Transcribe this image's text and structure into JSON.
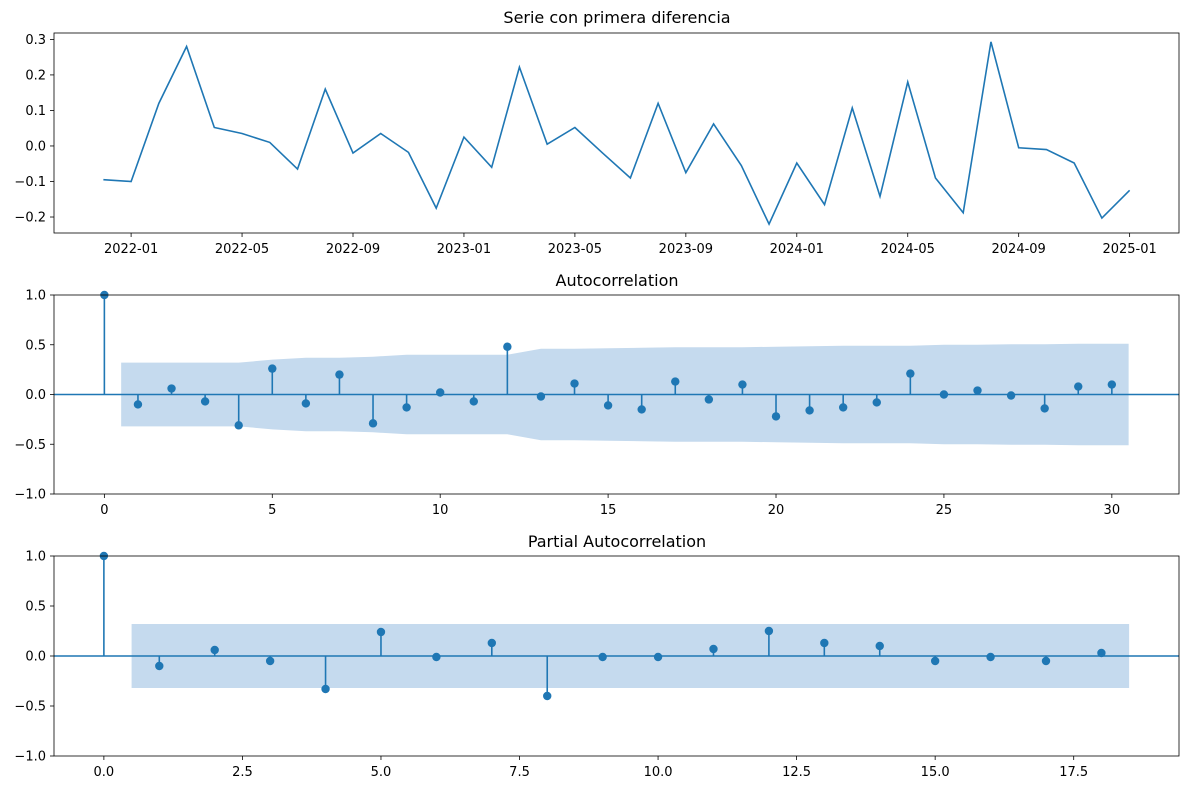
{
  "chart_data": [
    {
      "type": "line",
      "title": "Serie con primera diferencia",
      "xlabel": "",
      "ylabel": "",
      "x": [
        "2021-12",
        "2022-01",
        "2022-02",
        "2022-03",
        "2022-04",
        "2022-05",
        "2022-06",
        "2022-07",
        "2022-08",
        "2022-09",
        "2022-10",
        "2022-11",
        "2022-12",
        "2023-01",
        "2023-02",
        "2023-03",
        "2023-04",
        "2023-05",
        "2023-06",
        "2023-07",
        "2023-08",
        "2023-09",
        "2023-10",
        "2023-11",
        "2023-12",
        "2024-01",
        "2024-02",
        "2024-03",
        "2024-04",
        "2024-05",
        "2024-06",
        "2024-07",
        "2024-08",
        "2024-09",
        "2024-10",
        "2024-11",
        "2024-12",
        "2025-01"
      ],
      "series": [
        {
          "values": [
            -0.095,
            -0.1,
            0.12,
            0.28,
            0.052,
            0.035,
            0.01,
            -0.065,
            0.16,
            -0.02,
            0.035,
            -0.018,
            -0.175,
            0.025,
            -0.06,
            0.222,
            0.005,
            0.052,
            -0.02,
            -0.09,
            0.12,
            -0.075,
            0.062,
            -0.055,
            -0.22,
            -0.048,
            -0.165,
            0.107,
            -0.142,
            0.18,
            -0.09,
            -0.188,
            0.293,
            -0.005,
            -0.01,
            -0.048,
            -0.203,
            -0.125
          ],
          "color": "#1f77b4"
        }
      ],
      "x_ticks": [
        "2022-01",
        "2022-05",
        "2022-09",
        "2023-01",
        "2023-05",
        "2023-09",
        "2024-01",
        "2024-05",
        "2024-09",
        "2025-01"
      ],
      "y_ticks": [
        "0.3",
        "0.2",
        "0.1",
        "0.0",
        "−0.1",
        "−0.2"
      ],
      "ylim": [
        -0.245,
        0.318
      ],
      "grid": false
    },
    {
      "type": "stem",
      "title": "Autocorrelation",
      "xlabel": "",
      "ylabel": "",
      "x": [
        0,
        1,
        2,
        3,
        4,
        5,
        6,
        7,
        8,
        9,
        10,
        11,
        12,
        13,
        14,
        15,
        16,
        17,
        18,
        19,
        20,
        21,
        22,
        23,
        24,
        25,
        26,
        27,
        28,
        29,
        30
      ],
      "values": [
        1.0,
        -0.1,
        0.06,
        -0.07,
        -0.31,
        0.26,
        -0.09,
        0.2,
        -0.29,
        -0.13,
        0.02,
        -0.07,
        0.48,
        -0.02,
        0.11,
        -0.11,
        -0.15,
        0.13,
        -0.05,
        0.1,
        -0.22,
        -0.16,
        -0.13,
        -0.08,
        0.21,
        0.0,
        0.04,
        -0.01,
        -0.14,
        0.08,
        0.1
      ],
      "confidence_band": {
        "x": [
          0.5,
          1,
          2,
          3,
          4,
          5,
          6,
          7,
          8,
          9,
          10,
          11,
          12,
          13,
          14,
          15,
          16,
          17,
          18,
          19,
          20,
          21,
          22,
          23,
          24,
          25,
          26,
          27,
          28,
          29,
          30,
          30.5
        ],
        "upper": [
          0.32,
          0.32,
          0.32,
          0.32,
          0.32,
          0.35,
          0.37,
          0.37,
          0.38,
          0.4,
          0.4,
          0.4,
          0.4,
          0.46,
          0.46,
          0.465,
          0.47,
          0.475,
          0.475,
          0.475,
          0.48,
          0.485,
          0.49,
          0.49,
          0.49,
          0.5,
          0.5,
          0.505,
          0.505,
          0.51,
          0.51,
          0.51
        ]
      },
      "x_ticks": [
        "0",
        "5",
        "10",
        "15",
        "20",
        "25",
        "30"
      ],
      "x_tick_values": [
        0,
        5,
        10,
        15,
        20,
        25,
        30
      ],
      "y_ticks": [
        "1.0",
        "0.5",
        "0.0",
        "−0.5",
        "−1.0"
      ],
      "xlim": [
        -1.5,
        32.0
      ],
      "ylim": [
        -1.0,
        1.0
      ],
      "color": "#1f77b4",
      "band_color": "#c5daee"
    },
    {
      "type": "stem",
      "title": "Partial Autocorrelation",
      "xlabel": "",
      "ylabel": "",
      "x": [
        0,
        1,
        2,
        3,
        4,
        5,
        6,
        7,
        8,
        9,
        10,
        11,
        12,
        13,
        14,
        15,
        16,
        17,
        18
      ],
      "values": [
        1.0,
        -0.1,
        0.06,
        -0.05,
        -0.33,
        0.24,
        -0.01,
        0.13,
        -0.4,
        -0.01,
        -0.01,
        0.07,
        0.25,
        0.13,
        0.1,
        -0.05,
        -0.01,
        -0.05,
        0.03
      ],
      "confidence_band": {
        "x": [
          0.5,
          18.5
        ],
        "upper": [
          0.32,
          0.32
        ]
      },
      "x_ticks": [
        "0.0",
        "2.5",
        "5.0",
        "7.5",
        "10.0",
        "12.5",
        "15.0",
        "17.5"
      ],
      "x_tick_values": [
        0,
        2.5,
        5,
        7.5,
        10,
        12.5,
        15,
        17.5
      ],
      "y_ticks": [
        "1.0",
        "0.5",
        "0.0",
        "−0.5",
        "−1.0"
      ],
      "xlim": [
        -0.9,
        19.4
      ],
      "ylim": [
        -1.0,
        1.0
      ],
      "color": "#1f77b4",
      "band_color": "#c5daee"
    }
  ]
}
